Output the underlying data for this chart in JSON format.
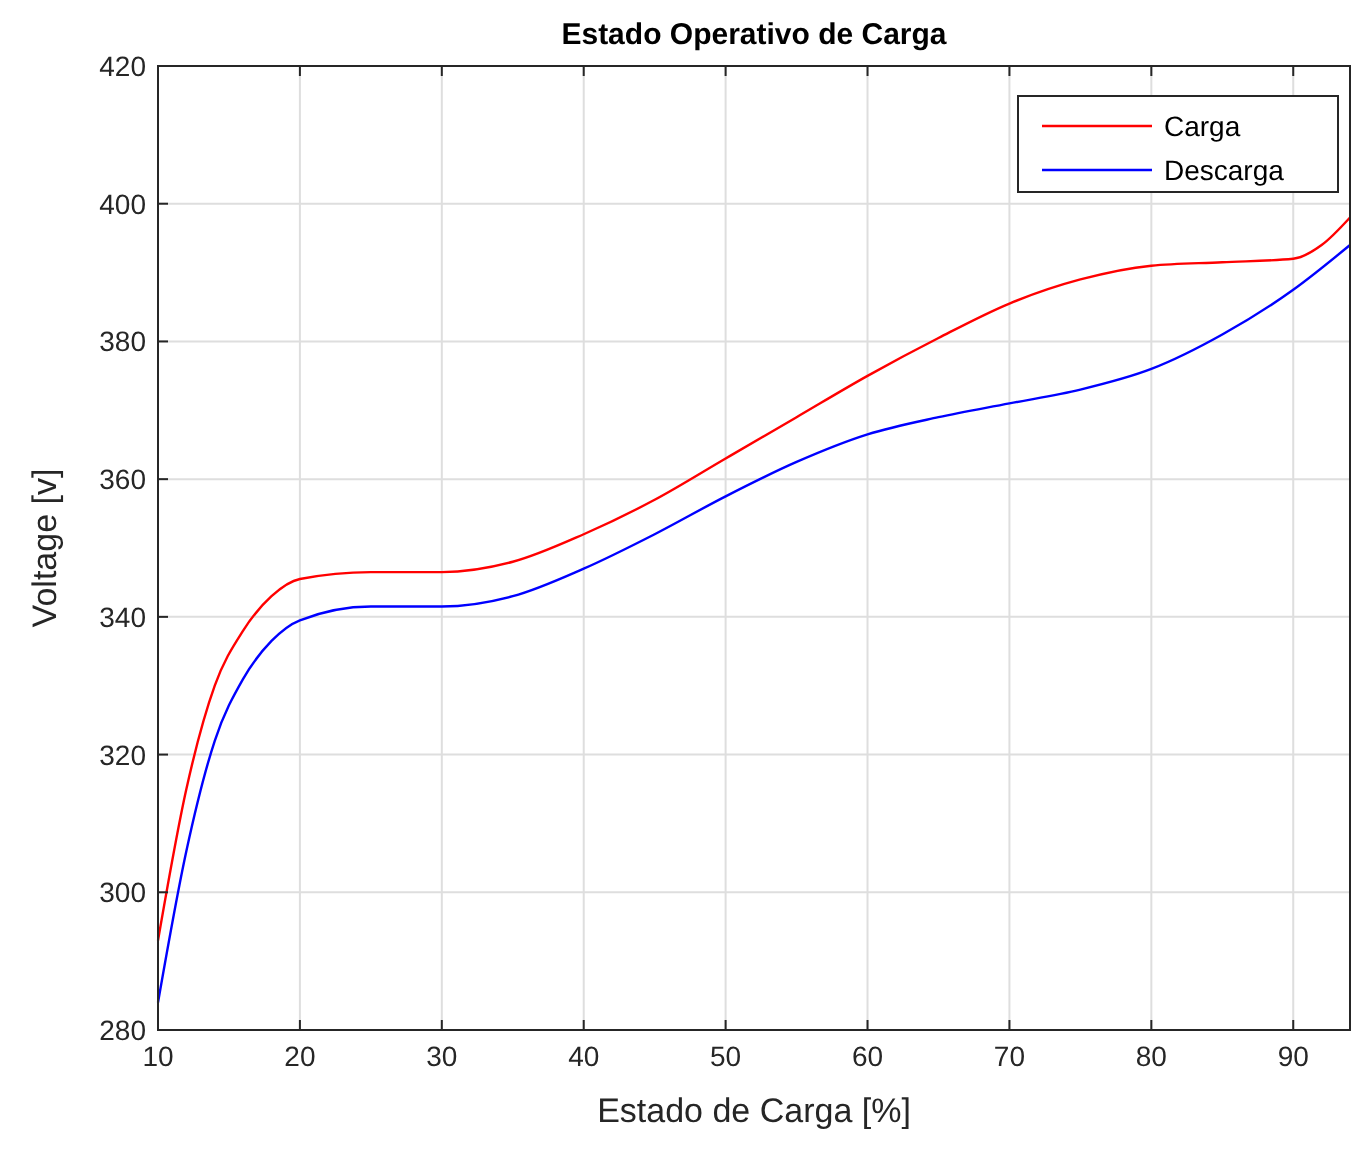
{
  "chart_data": {
    "type": "line",
    "title": "Estado Operativo de Carga",
    "xlabel": "Estado de Carga [%]",
    "ylabel": "Voltage [v]",
    "xlim": [
      10,
      94
    ],
    "ylim": [
      280,
      420
    ],
    "xticks": [
      10,
      20,
      30,
      40,
      50,
      60,
      70,
      80,
      90
    ],
    "yticks": [
      280,
      300,
      320,
      340,
      360,
      380,
      400,
      420
    ],
    "grid": true,
    "legend": "top right",
    "line_style": "solid",
    "series": [
      {
        "name": "Carga",
        "color": "#ff0000",
        "x": [
          10,
          12,
          14,
          16,
          18,
          20,
          25,
          30,
          35,
          40,
          45,
          50,
          55,
          60,
          65,
          70,
          75,
          80,
          85,
          90,
          92,
          94
        ],
        "values": [
          293,
          315,
          330,
          338,
          343,
          345.5,
          346.5,
          346.5,
          348,
          352,
          357,
          363,
          369,
          375,
          380.5,
          385.5,
          389,
          391,
          391.5,
          392,
          394,
          398
        ]
      },
      {
        "name": "Descarga",
        "color": "#0000ff",
        "x": [
          10,
          12,
          14,
          16,
          18,
          20,
          25,
          30,
          35,
          40,
          45,
          50,
          55,
          60,
          65,
          70,
          75,
          80,
          85,
          90,
          94
        ],
        "values": [
          284,
          306,
          322,
          331,
          336.5,
          339.5,
          341.5,
          341.5,
          343,
          347,
          352,
          357.5,
          362.5,
          366.5,
          369,
          371,
          373,
          376,
          381,
          387.5,
          394
        ]
      }
    ]
  }
}
